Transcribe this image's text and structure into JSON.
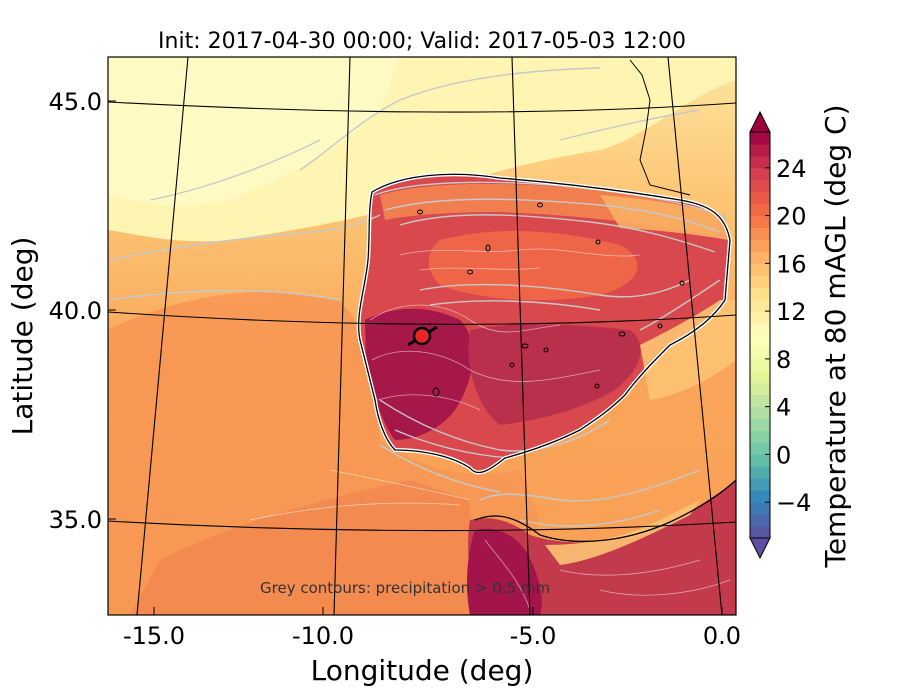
{
  "title": "Init: 2017-04-30 00:00; Valid: 2017-05-03 12:00",
  "xlabel": "Longitude (deg)",
  "ylabel": "Latitude (deg)",
  "colorbar_label": "Temperature at 80 mAGL (deg C)",
  "annotation": "Grey contours: precipitation > 0.5 mm",
  "x_ticks": [
    "-15.0",
    "-10.0",
    "-5.0",
    "0.0"
  ],
  "y_ticks": [
    "45.0",
    "40.0",
    "35.0"
  ],
  "colorbar_ticks": [
    "24",
    "20",
    "16",
    "12",
    "8",
    "4",
    "0",
    "−4"
  ],
  "colors": {
    "ocean_warm": "#f9a65a",
    "ocean_mild": "#fdc373",
    "north_cool": "#fff4ad",
    "land_hot": "#c83a4b",
    "land_very_hot": "#a2144a",
    "precip_contour": "#c8c8c8",
    "marker": "#e8262a"
  },
  "map_data": {
    "extent_lon": [
      -16,
      0.2
    ],
    "extent_lat": [
      32.7,
      46.1
    ],
    "colorbar_range": [
      -7,
      27
    ],
    "marker": {
      "lon": -7.7,
      "lat": 39.4
    }
  }
}
